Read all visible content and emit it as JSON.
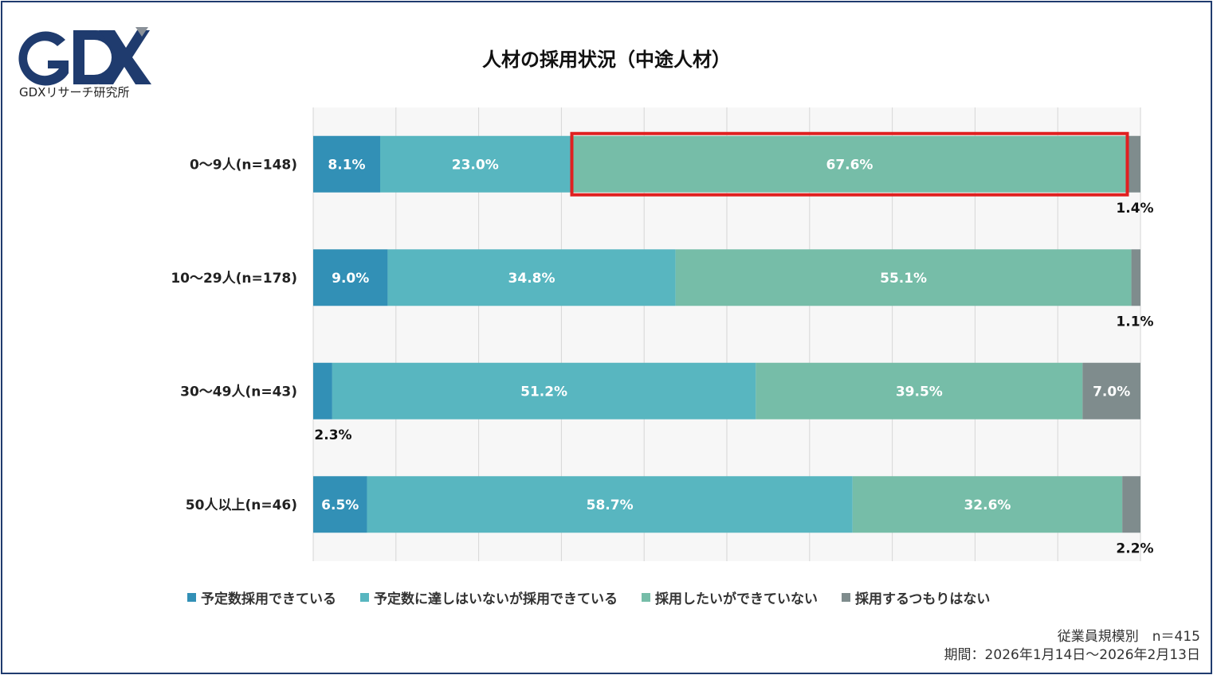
{
  "logo": {
    "text": "GDX",
    "subtitle": "GDXリサーチ研究所"
  },
  "chart_data": {
    "type": "bar",
    "orientation": "horizontal",
    "stacked": true,
    "title": "人材の採用状況（中途人材）",
    "categories": [
      "0〜9人(n=148)",
      "10〜29人(n=178)",
      "30〜49人(n=43)",
      "50人以上(n=46)"
    ],
    "xlim": [
      0,
      100
    ],
    "grid": true,
    "legend_position": "bottom",
    "series": [
      {
        "name": "予定数採用できている",
        "color": "#3290b6",
        "values": [
          8.1,
          9.0,
          2.3,
          6.5
        ],
        "labels": [
          "8.1%",
          "9.0%",
          "2.3%",
          "6.5%"
        ]
      },
      {
        "name": "予定数に達しはいないが採用できている",
        "color": "#58b6c0",
        "values": [
          23.0,
          34.8,
          51.2,
          58.7
        ],
        "labels": [
          "23.0%",
          "34.8%",
          "51.2%",
          "58.7%"
        ]
      },
      {
        "name": "採用したいができていない",
        "color": "#76bda8",
        "values": [
          67.6,
          55.1,
          39.5,
          32.6
        ],
        "labels": [
          "67.6%",
          "55.1%",
          "39.5%",
          "32.6%"
        ]
      },
      {
        "name": "採用するつもりはない",
        "color": "#7f8c8d",
        "values": [
          1.4,
          1.1,
          7.0,
          2.2
        ],
        "labels": [
          "1.4%",
          "1.1%",
          "7.0%",
          "2.2%"
        ]
      }
    ],
    "highlight": {
      "category_index": 0,
      "series_index": 2,
      "color": "#e02020"
    }
  },
  "footer": {
    "line1": "従業員規模別　n＝415",
    "line2": "期間：2026年1月14日〜2026年2月13日"
  }
}
